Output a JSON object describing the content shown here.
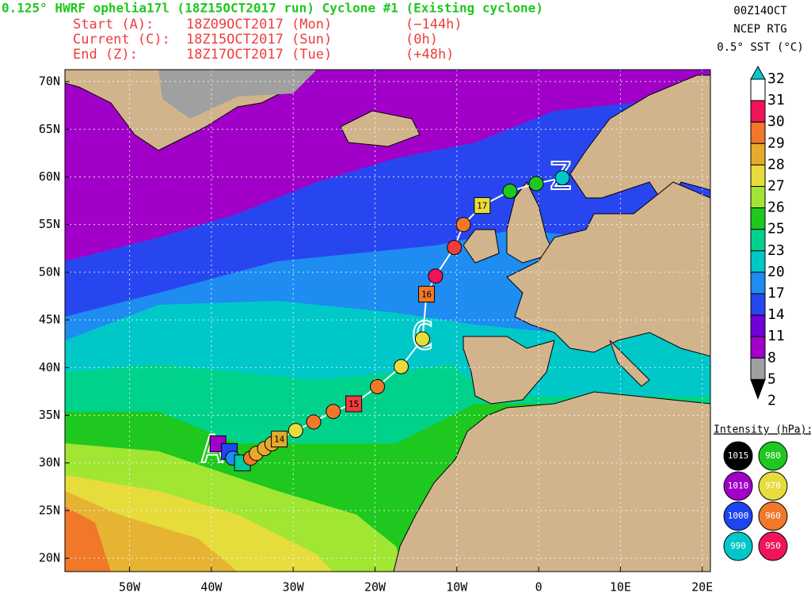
{
  "header": {
    "title": "0.125° HWRF ophelia17l (18Z15OCT2017 run) Cyclone #1 (Existing cyclone)",
    "rows": [
      [
        "Start (A):",
        "18Z09OCT2017 (Mon)",
        "(−144h)"
      ],
      [
        "Current (C):",
        "18Z15OCT2017 (Sun)",
        "(0h)"
      ],
      [
        "End (Z):",
        "18Z17OCT2017 (Tue)",
        "(+48h)"
      ]
    ]
  },
  "sst_info": [
    "00Z14OCT",
    "NCEP RTG",
    "0.5° SST (°C)"
  ],
  "map": {
    "lon_range": [
      -57.9,
      21
    ],
    "lat_range": [
      18.6,
      71.25
    ],
    "lat_ticks": [
      {
        "value": 70,
        "label": "70N"
      },
      {
        "value": 65,
        "label": "65N"
      },
      {
        "value": 60,
        "label": "60N"
      },
      {
        "value": 55,
        "label": "55N"
      },
      {
        "value": 50,
        "label": "50N"
      },
      {
        "value": 45,
        "label": "45N"
      },
      {
        "value": 40,
        "label": "40N"
      },
      {
        "value": 35,
        "label": "35N"
      },
      {
        "value": 30,
        "label": "30N"
      },
      {
        "value": 25,
        "label": "25N"
      },
      {
        "value": 20,
        "label": "20N"
      }
    ],
    "lon_ticks": [
      {
        "value": -50,
        "label": "50W"
      },
      {
        "value": -40,
        "label": "40W"
      },
      {
        "value": -30,
        "label": "30W"
      },
      {
        "value": -20,
        "label": "20W"
      },
      {
        "value": -10,
        "label": "10W"
      },
      {
        "value": 0,
        "label": "0"
      },
      {
        "value": 10,
        "label": "10E"
      },
      {
        "value": 20,
        "label": "20E"
      }
    ]
  },
  "colorbar": {
    "levels": [
      32,
      31,
      30,
      29,
      28,
      27,
      26,
      25,
      23,
      20,
      17,
      14,
      11,
      8,
      5,
      2
    ],
    "colors": [
      "#ffffff",
      "#f0145a",
      "#f07828",
      "#e6aa2d",
      "#e6dc3c",
      "#a0e632",
      "#1ec81e",
      "#00d28c",
      "#00c8c8",
      "#1e8cf0",
      "#2846f0",
      "#7000d8",
      "#a000c8",
      "#a0a0a0"
    ],
    "top_color": "#00c8c8",
    "bottom_color": "#000000"
  },
  "intensity_legend": {
    "title": "Intensity (hPa):",
    "items": [
      {
        "value": 1015,
        "color": "#000000"
      },
      {
        "value": 980,
        "color": "#1ec81e"
      },
      {
        "value": 1010,
        "color": "#a000c8"
      },
      {
        "value": 970,
        "color": "#e6dc3c"
      },
      {
        "value": 1000,
        "color": "#1e46f0"
      },
      {
        "value": 960,
        "color": "#f07828"
      },
      {
        "value": 990,
        "color": "#00c8c8"
      },
      {
        "value": 950,
        "color": "#f0145a"
      }
    ]
  },
  "track": [
    {
      "lon": -39.2,
      "lat": 32.0,
      "color": "#a000c8",
      "shape": "square"
    },
    {
      "lon": -37.8,
      "lat": 31.2,
      "color": "#1e46f0",
      "shape": "square"
    },
    {
      "lon": -37.4,
      "lat": 30.5,
      "color": "#1e8cf0",
      "shape": "circle"
    },
    {
      "lon": -36.2,
      "lat": 30.0,
      "color": "#00c8a0",
      "shape": "square"
    },
    {
      "lon": -35.2,
      "lat": 30.5,
      "color": "#f07828",
      "shape": "circle"
    },
    {
      "lon": -34.5,
      "lat": 31.0,
      "color": "#e6aa2d",
      "shape": "circle"
    },
    {
      "lon": -33.5,
      "lat": 31.5,
      "color": "#e6aa2d",
      "shape": "circle"
    },
    {
      "lon": -32.6,
      "lat": 32.0,
      "color": "#e6aa2d",
      "shape": "circle"
    },
    {
      "lon": -31.7,
      "lat": 32.5,
      "color": "#e6aa2d",
      "shape": "square",
      "label": "14"
    },
    {
      "lon": -29.7,
      "lat": 33.4,
      "color": "#e6dc3c",
      "shape": "circle"
    },
    {
      "lon": -27.5,
      "lat": 34.3,
      "color": "#f07828",
      "shape": "circle"
    },
    {
      "lon": -25.1,
      "lat": 35.4,
      "color": "#f07828",
      "shape": "circle"
    },
    {
      "lon": -22.6,
      "lat": 36.2,
      "color": "#f03c3c",
      "shape": "square",
      "label": "15"
    },
    {
      "lon": -19.7,
      "lat": 38.0,
      "color": "#f07828",
      "shape": "circle"
    },
    {
      "lon": -16.8,
      "lat": 40.1,
      "color": "#e6dc3c",
      "shape": "circle"
    },
    {
      "lon": -14.2,
      "lat": 43.0,
      "color": "#e6dc3c",
      "shape": "circle"
    },
    {
      "lon": -13.7,
      "lat": 47.7,
      "color": "#f07828",
      "shape": "square",
      "label": "16"
    },
    {
      "lon": -12.6,
      "lat": 49.6,
      "color": "#f0145a",
      "shape": "circle"
    },
    {
      "lon": -10.3,
      "lat": 52.6,
      "color": "#f03c3c",
      "shape": "circle"
    },
    {
      "lon": -9.2,
      "lat": 55.0,
      "color": "#f07828",
      "shape": "circle"
    },
    {
      "lon": -6.9,
      "lat": 57.0,
      "color": "#e6dc3c",
      "shape": "square",
      "label": "17"
    },
    {
      "lon": -3.5,
      "lat": 58.5,
      "color": "#1ec81e",
      "shape": "circle"
    },
    {
      "lon": -0.3,
      "lat": 59.3,
      "color": "#1ec81e",
      "shape": "circle"
    },
    {
      "lon": 2.9,
      "lat": 59.9,
      "color": "#00c8c8",
      "shape": "circle"
    }
  ],
  "markers": [
    {
      "label": "A",
      "lon": -39.9,
      "lat": 31.2
    },
    {
      "label": "C",
      "lon": -14.2,
      "lat": 43.0
    },
    {
      "label": "Z",
      "lon": 2.6,
      "lat": 59.8
    }
  ]
}
